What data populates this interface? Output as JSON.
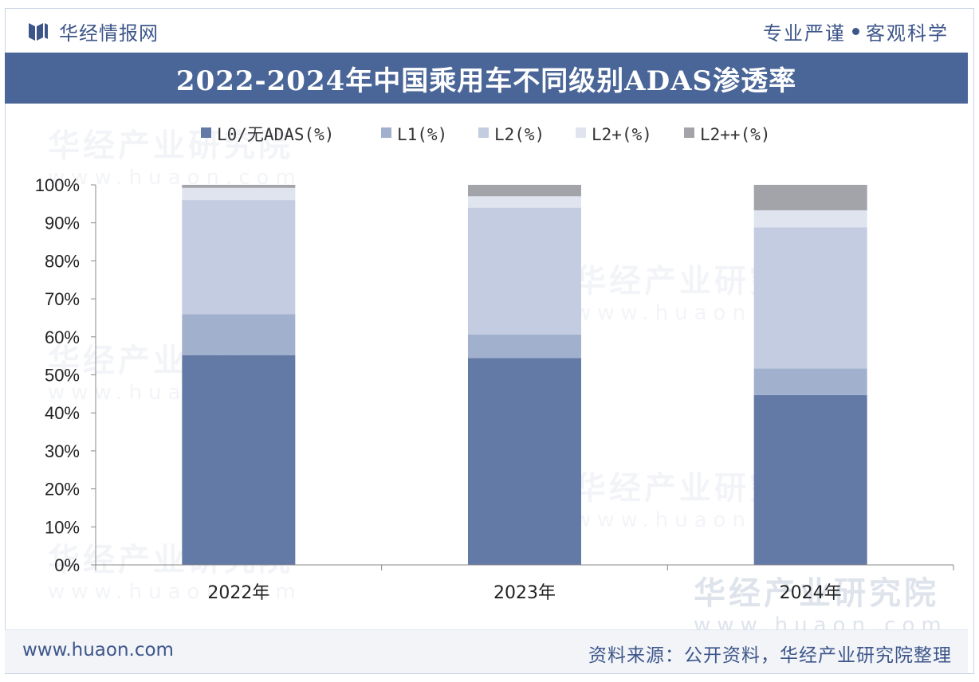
{
  "header": {
    "brand_name": "华经情报网",
    "slogan_left": "专业严谨",
    "slogan_right": "客观科学"
  },
  "watermark": {
    "text": "华经产业研究院",
    "url": "www.huaon.com"
  },
  "footer": {
    "url": "www.huaon.com",
    "source": "资料来源：公开资料，华经产业研究院整理"
  },
  "colors": {
    "title_band": "#4a6597",
    "brand_text": "#3d568a"
  },
  "chart_data": {
    "type": "bar",
    "stacked": true,
    "title": "2022-2024年中国乘用车不同级别ADAS渗透率",
    "categories": [
      "2022年",
      "2023年",
      "2024年"
    ],
    "ylim": [
      0,
      100
    ],
    "yticks": [
      "0%",
      "10%",
      "20%",
      "30%",
      "40%",
      "50%",
      "60%",
      "70%",
      "80%",
      "90%",
      "100%"
    ],
    "legend_position": "top",
    "grid": false,
    "series": [
      {
        "name": "L0/无ADAS(%)",
        "color": "#6379a6",
        "values": [
          55.2,
          54.4,
          44.7
        ]
      },
      {
        "name": "L1(%)",
        "color": "#a1b0cd",
        "values": [
          10.8,
          6.2,
          7.0
        ]
      },
      {
        "name": "L2(%)",
        "color": "#c3cce0",
        "values": [
          30.0,
          33.4,
          37.1
        ]
      },
      {
        "name": "L2+(%)",
        "color": "#dfe4ef",
        "values": [
          3.2,
          3.0,
          4.5
        ]
      },
      {
        "name": "L2++(%)",
        "color": "#a3a4a9",
        "values": [
          0.8,
          3.0,
          6.7
        ]
      }
    ]
  }
}
